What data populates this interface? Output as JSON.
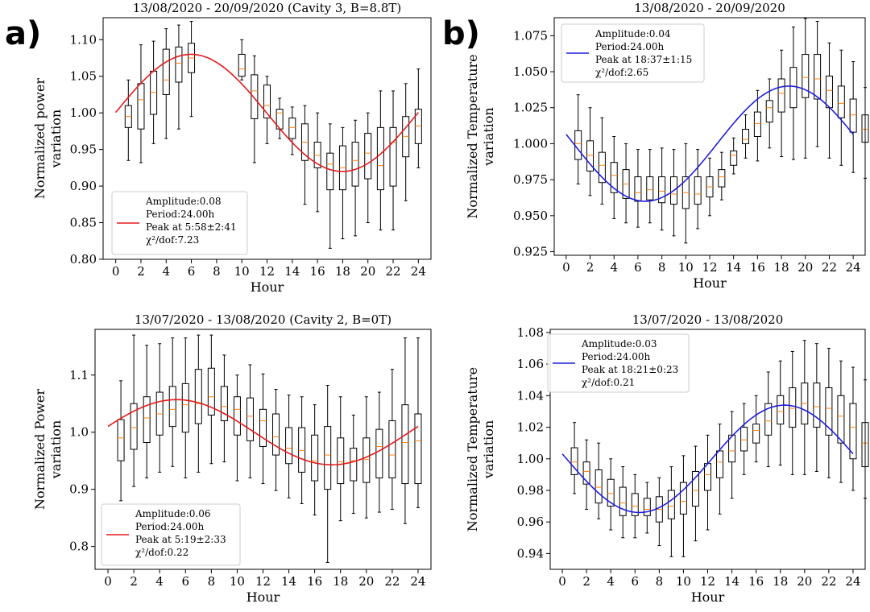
{
  "panel_labels": [
    "a)",
    "b)"
  ],
  "chart_data": [
    {
      "id": "p1",
      "type": "box",
      "title": "13/08/2020 - 20/09/2020 (Cavity 3, B=8.8T)",
      "xlabel": "Hour",
      "ylabel": [
        "Normalized power",
        "variation"
      ],
      "xlim": [
        -1,
        25
      ],
      "ylim": [
        0.8,
        1.13
      ],
      "xticks": [
        0,
        2,
        4,
        6,
        8,
        10,
        12,
        14,
        16,
        18,
        20,
        22,
        24
      ],
      "yticks": [
        0.8,
        0.85,
        0.9,
        0.95,
        1.0,
        1.05,
        1.1
      ],
      "ytick_labels": [
        "0.80",
        "0.85",
        "0.90",
        "0.95",
        "1.00",
        "1.05",
        "1.10"
      ],
      "fit": {
        "color": "#e41a1c",
        "start": 0,
        "end": 24,
        "mean": 1.0,
        "amplitude": 0.08,
        "period": 24,
        "peak_hour": 5.97
      },
      "legend": {
        "position": "lower-left",
        "lines": [
          "Amplitude:0.08",
          "Period:24.00h",
          "Peak at 5:58±2:41",
          "χ²/dof:7.23"
        ]
      },
      "boxes": [
        {
          "x": 1,
          "q1": 0.98,
          "median": 0.995,
          "q3": 1.01,
          "wlo": 0.935,
          "whi": 1.045
        },
        {
          "x": 2,
          "q1": 0.978,
          "median": 1.018,
          "q3": 1.04,
          "wlo": 0.932,
          "whi": 1.093
        },
        {
          "x": 3,
          "q1": 0.998,
          "median": 1.028,
          "q3": 1.057,
          "wlo": 0.958,
          "whi": 1.098
        },
        {
          "x": 4,
          "q1": 1.025,
          "median": 1.045,
          "q3": 1.087,
          "wlo": 0.965,
          "whi": 1.115
        },
        {
          "x": 5,
          "q1": 1.042,
          "median": 1.068,
          "q3": 1.09,
          "wlo": 0.978,
          "whi": 1.12
        },
        {
          "x": 6,
          "q1": 1.055,
          "median": 1.075,
          "q3": 1.095,
          "wlo": 0.995,
          "whi": 1.125
        },
        {
          "x": 10,
          "q1": 1.05,
          "median": 1.06,
          "q3": 1.08,
          "wlo": 1.045,
          "whi": 1.1
        },
        {
          "x": 11,
          "q1": 0.992,
          "median": 1.03,
          "q3": 1.052,
          "wlo": 0.932,
          "whi": 1.078
        },
        {
          "x": 12,
          "q1": 0.993,
          "median": 1.01,
          "q3": 1.038,
          "wlo": 0.958,
          "whi": 1.05
        },
        {
          "x": 13,
          "q1": 0.978,
          "median": 1.0,
          "q3": 1.005,
          "wlo": 0.965,
          "whi": 1.02
        },
        {
          "x": 14,
          "q1": 0.965,
          "median": 0.98,
          "q3": 0.993,
          "wlo": 0.943,
          "whi": 1.008
        },
        {
          "x": 15,
          "q1": 0.935,
          "median": 0.96,
          "q3": 0.985,
          "wlo": 0.875,
          "whi": 1.01
        },
        {
          "x": 16,
          "q1": 0.925,
          "median": 0.942,
          "q3": 0.96,
          "wlo": 0.865,
          "whi": 1.0
        },
        {
          "x": 17,
          "q1": 0.895,
          "median": 0.93,
          "q3": 0.945,
          "wlo": 0.815,
          "whi": 0.985
        },
        {
          "x": 18,
          "q1": 0.895,
          "median": 0.925,
          "q3": 0.955,
          "wlo": 0.828,
          "whi": 0.98
        },
        {
          "x": 19,
          "q1": 0.9,
          "median": 0.935,
          "q3": 0.96,
          "wlo": 0.832,
          "whi": 0.99
        },
        {
          "x": 20,
          "q1": 0.91,
          "median": 0.945,
          "q3": 0.972,
          "wlo": 0.85,
          "whi": 1.0
        },
        {
          "x": 21,
          "q1": 0.895,
          "median": 0.928,
          "q3": 0.98,
          "wlo": 0.84,
          "whi": 1.03
        },
        {
          "x": 22,
          "q1": 0.9,
          "median": 0.96,
          "q3": 0.98,
          "wlo": 0.84,
          "whi": 1.03
        },
        {
          "x": 23,
          "q1": 0.94,
          "median": 0.968,
          "q3": 0.995,
          "wlo": 0.88,
          "whi": 1.04
        },
        {
          "x": 24,
          "q1": 0.958,
          "median": 0.982,
          "q3": 1.005,
          "wlo": 0.925,
          "whi": 1.06
        }
      ]
    },
    {
      "id": "p2",
      "type": "box",
      "title": "13/08/2020 - 20/09/2020",
      "xlabel": "Hour",
      "ylabel": [
        "Normalized Temperature",
        "variation"
      ],
      "xlim": [
        -1,
        25
      ],
      "ylim": [
        0.9225,
        1.0875
      ],
      "xticks": [
        0,
        2,
        4,
        6,
        8,
        10,
        12,
        14,
        16,
        18,
        20,
        22,
        24
      ],
      "yticks": [
        0.925,
        0.95,
        0.975,
        1.0,
        1.025,
        1.05,
        1.075
      ],
      "ytick_labels": [
        "0.925",
        "0.950",
        "0.975",
        "1.000",
        "1.025",
        "1.050",
        "1.075"
      ],
      "fit": {
        "color": "#1f1fdd",
        "start": 0,
        "end": 24,
        "mean": 1.0,
        "amplitude": 0.04,
        "period": 24,
        "peak_hour": 18.62
      },
      "legend": {
        "position": "upper-left",
        "lines": [
          "Amplitude:0.04",
          "Period:24.00h",
          "Peak at 18:37±1:15",
          "χ²/dof:2.65"
        ]
      },
      "boxes": [
        {
          "x": 1,
          "q1": 0.989,
          "median": 1.0,
          "q3": 1.009,
          "wlo": 0.972,
          "whi": 1.034
        },
        {
          "x": 2,
          "q1": 0.981,
          "median": 0.992,
          "q3": 1.002,
          "wlo": 0.964,
          "whi": 1.025
        },
        {
          "x": 3,
          "q1": 0.973,
          "median": 0.985,
          "q3": 0.994,
          "wlo": 0.958,
          "whi": 1.018
        },
        {
          "x": 4,
          "q1": 0.966,
          "median": 0.978,
          "q3": 0.987,
          "wlo": 0.948,
          "whi": 1.005
        },
        {
          "x": 5,
          "q1": 0.962,
          "median": 0.972,
          "q3": 0.982,
          "wlo": 0.945,
          "whi": 1.0
        },
        {
          "x": 6,
          "q1": 0.96,
          "median": 0.966,
          "q3": 0.977,
          "wlo": 0.942,
          "whi": 0.996
        },
        {
          "x": 7,
          "q1": 0.961,
          "median": 0.968,
          "q3": 0.977,
          "wlo": 0.945,
          "whi": 0.996
        },
        {
          "x": 8,
          "q1": 0.959,
          "median": 0.967,
          "q3": 0.977,
          "wlo": 0.94,
          "whi": 0.997
        },
        {
          "x": 9,
          "q1": 0.958,
          "median": 0.965,
          "q3": 0.977,
          "wlo": 0.936,
          "whi": 0.996
        },
        {
          "x": 10,
          "q1": 0.955,
          "median": 0.966,
          "q3": 0.977,
          "wlo": 0.931,
          "whi": 1.0
        },
        {
          "x": 11,
          "q1": 0.958,
          "median": 0.965,
          "q3": 0.977,
          "wlo": 0.941,
          "whi": 0.996
        },
        {
          "x": 12,
          "q1": 0.963,
          "median": 0.97,
          "q3": 0.977,
          "wlo": 0.95,
          "whi": 0.99
        },
        {
          "x": 13,
          "q1": 0.97,
          "median": 0.977,
          "q3": 0.982,
          "wlo": 0.961,
          "whi": 0.994
        },
        {
          "x": 14,
          "q1": 0.985,
          "median": 0.992,
          "q3": 0.995,
          "wlo": 0.979,
          "whi": 1.004
        },
        {
          "x": 15,
          "q1": 1.0,
          "median": 1.003,
          "q3": 1.01,
          "wlo": 0.99,
          "whi": 1.02
        },
        {
          "x": 16,
          "q1": 1.005,
          "median": 1.014,
          "q3": 1.022,
          "wlo": 0.988,
          "whi": 1.037
        },
        {
          "x": 17,
          "q1": 1.015,
          "median": 1.025,
          "q3": 1.03,
          "wlo": 0.997,
          "whi": 1.045
        },
        {
          "x": 18,
          "q1": 1.022,
          "median": 1.035,
          "q3": 1.045,
          "wlo": 0.991,
          "whi": 1.065
        },
        {
          "x": 19,
          "q1": 1.025,
          "median": 1.04,
          "q3": 1.053,
          "wlo": 0.989,
          "whi": 1.081
        },
        {
          "x": 20,
          "q1": 1.032,
          "median": 1.046,
          "q3": 1.062,
          "wlo": 0.99,
          "whi": 1.087
        },
        {
          "x": 21,
          "q1": 1.031,
          "median": 1.045,
          "q3": 1.062,
          "wlo": 0.998,
          "whi": 1.085
        },
        {
          "x": 22,
          "q1": 1.025,
          "median": 1.037,
          "q3": 1.047,
          "wlo": 0.99,
          "whi": 1.07
        },
        {
          "x": 23,
          "q1": 1.018,
          "median": 1.028,
          "q3": 1.04,
          "wlo": 0.985,
          "whi": 1.065
        },
        {
          "x": 24,
          "q1": 1.008,
          "median": 1.02,
          "q3": 1.031,
          "wlo": 0.98,
          "whi": 1.057
        },
        {
          "x": 25,
          "q1": 1.001,
          "median": 1.01,
          "q3": 1.02,
          "wlo": 0.976,
          "whi": 1.039
        }
      ]
    },
    {
      "id": "p3",
      "type": "box",
      "title": "13/07/2020 - 13/08/2020 (Cavity 2, B=0T)",
      "xlabel": "Hour",
      "ylabel": [
        "Normalized Power",
        "variation"
      ],
      "xlim": [
        -1,
        25
      ],
      "ylim": [
        0.76,
        1.18
      ],
      "xticks": [
        0,
        2,
        4,
        6,
        8,
        10,
        12,
        14,
        16,
        18,
        20,
        22,
        24
      ],
      "yticks": [
        0.8,
        0.9,
        1.0,
        1.1
      ],
      "ytick_labels": [
        "0.8",
        "0.9",
        "1.0",
        "1.1"
      ],
      "fit": {
        "color": "#e41a1c",
        "start": 0,
        "end": 24,
        "mean": 1.0,
        "amplitude": 0.057,
        "period": 24,
        "peak_hour": 5.32
      },
      "legend": {
        "position": "lower-left",
        "lines": [
          "Amplitude:0.06",
          "Period:24.00h",
          "Peak at 5:19±2:33",
          "χ²/dof:0.22"
        ]
      },
      "boxes": [
        {
          "x": 1,
          "q1": 0.95,
          "median": 0.99,
          "q3": 1.022,
          "wlo": 0.88,
          "whi": 1.09
        },
        {
          "x": 2,
          "q1": 0.97,
          "median": 1.008,
          "q3": 1.05,
          "wlo": 0.905,
          "whi": 1.17
        },
        {
          "x": 3,
          "q1": 0.982,
          "median": 1.025,
          "q3": 1.062,
          "wlo": 0.92,
          "whi": 1.152
        },
        {
          "x": 4,
          "q1": 0.995,
          "median": 1.032,
          "q3": 1.07,
          "wlo": 0.93,
          "whi": 1.155
        },
        {
          "x": 5,
          "q1": 1.01,
          "median": 1.04,
          "q3": 1.08,
          "wlo": 0.94,
          "whi": 1.165
        },
        {
          "x": 6,
          "q1": 1.0,
          "median": 1.048,
          "q3": 1.085,
          "wlo": 0.92,
          "whi": 1.165
        },
        {
          "x": 7,
          "q1": 1.015,
          "median": 1.05,
          "q3": 1.11,
          "wlo": 0.93,
          "whi": 1.17
        },
        {
          "x": 8,
          "q1": 1.03,
          "median": 1.062,
          "q3": 1.112,
          "wlo": 0.945,
          "whi": 1.17
        },
        {
          "x": 9,
          "q1": 1.02,
          "median": 1.045,
          "q3": 1.08,
          "wlo": 0.948,
          "whi": 1.135
        },
        {
          "x": 10,
          "q1": 0.995,
          "median": 1.04,
          "q3": 1.062,
          "wlo": 0.915,
          "whi": 1.1
        },
        {
          "x": 11,
          "q1": 0.985,
          "median": 1.028,
          "q3": 1.06,
          "wlo": 0.92,
          "whi": 1.118
        },
        {
          "x": 12,
          "q1": 0.975,
          "median": 1.02,
          "q3": 1.04,
          "wlo": 0.91,
          "whi": 1.102
        },
        {
          "x": 13,
          "q1": 0.96,
          "median": 0.992,
          "q3": 1.032,
          "wlo": 0.898,
          "whi": 1.075
        },
        {
          "x": 14,
          "q1": 0.945,
          "median": 0.972,
          "q3": 1.008,
          "wlo": 0.885,
          "whi": 1.065
        },
        {
          "x": 15,
          "q1": 0.93,
          "median": 0.968,
          "q3": 1.008,
          "wlo": 0.875,
          "whi": 1.062
        },
        {
          "x": 16,
          "q1": 0.915,
          "median": 0.95,
          "q3": 0.995,
          "wlo": 0.855,
          "whi": 1.048
        },
        {
          "x": 17,
          "q1": 0.9,
          "median": 0.96,
          "q3": 1.01,
          "wlo": 0.772,
          "whi": 1.082
        },
        {
          "x": 18,
          "q1": 0.91,
          "median": 0.948,
          "q3": 0.99,
          "wlo": 0.845,
          "whi": 1.062
        },
        {
          "x": 19,
          "q1": 0.915,
          "median": 0.95,
          "q3": 0.972,
          "wlo": 0.858,
          "whi": 1.03
        },
        {
          "x": 20,
          "q1": 0.912,
          "median": 0.952,
          "q3": 0.99,
          "wlo": 0.85,
          "whi": 1.062
        },
        {
          "x": 21,
          "q1": 0.92,
          "median": 0.975,
          "q3": 1.005,
          "wlo": 0.86,
          "whi": 1.07
        },
        {
          "x": 22,
          "q1": 0.92,
          "median": 0.96,
          "q3": 1.02,
          "wlo": 0.865,
          "whi": 1.11
        },
        {
          "x": 23,
          "q1": 0.91,
          "median": 0.982,
          "q3": 1.048,
          "wlo": 0.84,
          "whi": 1.165
        },
        {
          "x": 24,
          "q1": 0.91,
          "median": 0.985,
          "q3": 1.032,
          "wlo": 0.868,
          "whi": 1.165
        }
      ]
    },
    {
      "id": "p4",
      "type": "box",
      "title": "13/07/2020 - 13/08/2020",
      "xlabel": "Hour",
      "ylabel": [
        "Normalized Temperature",
        "variation"
      ],
      "xlim": [
        -1,
        25
      ],
      "ylim": [
        0.93,
        1.082
      ],
      "xticks": [
        0,
        2,
        4,
        6,
        8,
        10,
        12,
        14,
        16,
        18,
        20,
        22,
        24
      ],
      "yticks": [
        0.94,
        0.96,
        0.98,
        1.0,
        1.02,
        1.04,
        1.06,
        1.08
      ],
      "ytick_labels": [
        "0.94",
        "0.96",
        "0.98",
        "1.00",
        "1.02",
        "1.04",
        "1.06",
        "1.08"
      ],
      "fit": {
        "color": "#1f1fdd",
        "start": 0,
        "end": 24,
        "mean": 1.0,
        "amplitude": 0.034,
        "period": 24,
        "peak_hour": 18.35
      },
      "legend": {
        "position": "upper-left",
        "lines": [
          "Amplitude:0.03",
          "Period:24.00h",
          "Peak at 18:21±0:23",
          "χ²/dof:0.21"
        ]
      },
      "boxes": [
        {
          "x": 1,
          "q1": 0.99,
          "median": 0.998,
          "q3": 1.007,
          "wlo": 0.978,
          "whi": 1.023
        },
        {
          "x": 2,
          "q1": 0.984,
          "median": 0.992,
          "q3": 0.998,
          "wlo": 0.968,
          "whi": 1.012
        },
        {
          "x": 3,
          "q1": 0.972,
          "median": 0.982,
          "q3": 0.993,
          "wlo": 0.962,
          "whi": 1.01
        },
        {
          "x": 4,
          "q1": 0.97,
          "median": 0.978,
          "q3": 0.987,
          "wlo": 0.955,
          "whi": 1.0
        },
        {
          "x": 5,
          "q1": 0.964,
          "median": 0.972,
          "q3": 0.982,
          "wlo": 0.95,
          "whi": 0.995
        },
        {
          "x": 6,
          "q1": 0.964,
          "median": 0.97,
          "q3": 0.978,
          "wlo": 0.95,
          "whi": 0.99
        },
        {
          "x": 7,
          "q1": 0.964,
          "median": 0.968,
          "q3": 0.975,
          "wlo": 0.953,
          "whi": 0.985
        },
        {
          "x": 8,
          "q1": 0.96,
          "median": 0.968,
          "q3": 0.976,
          "wlo": 0.945,
          "whi": 0.988
        },
        {
          "x": 9,
          "q1": 0.962,
          "median": 0.97,
          "q3": 0.98,
          "wlo": 0.938,
          "whi": 0.995
        },
        {
          "x": 10,
          "q1": 0.965,
          "median": 0.973,
          "q3": 0.985,
          "wlo": 0.938,
          "whi": 1.002
        },
        {
          "x": 11,
          "q1": 0.97,
          "median": 0.98,
          "q3": 0.992,
          "wlo": 0.948,
          "whi": 1.008
        },
        {
          "x": 12,
          "q1": 0.98,
          "median": 0.99,
          "q3": 0.997,
          "wlo": 0.955,
          "whi": 1.015
        },
        {
          "x": 13,
          "q1": 0.988,
          "median": 0.998,
          "q3": 1.005,
          "wlo": 0.965,
          "whi": 1.022
        },
        {
          "x": 14,
          "q1": 0.998,
          "median": 1.005,
          "q3": 1.015,
          "wlo": 0.975,
          "whi": 1.03
        },
        {
          "x": 15,
          "q1": 1.005,
          "median": 1.012,
          "q3": 1.02,
          "wlo": 0.99,
          "whi": 1.035
        },
        {
          "x": 16,
          "q1": 1.01,
          "median": 1.018,
          "q3": 1.022,
          "wlo": 0.998,
          "whi": 1.04
        },
        {
          "x": 17,
          "q1": 1.015,
          "median": 1.024,
          "q3": 1.035,
          "wlo": 0.995,
          "whi": 1.055
        },
        {
          "x": 18,
          "q1": 1.022,
          "median": 1.03,
          "q3": 1.04,
          "wlo": 0.996,
          "whi": 1.062
        },
        {
          "x": 19,
          "q1": 1.02,
          "median": 1.032,
          "q3": 1.045,
          "wlo": 0.99,
          "whi": 1.068
        },
        {
          "x": 20,
          "q1": 1.022,
          "median": 1.035,
          "q3": 1.048,
          "wlo": 0.99,
          "whi": 1.075
        },
        {
          "x": 21,
          "q1": 1.02,
          "median": 1.033,
          "q3": 1.048,
          "wlo": 0.992,
          "whi": 1.073
        },
        {
          "x": 22,
          "q1": 1.015,
          "median": 1.032,
          "q3": 1.045,
          "wlo": 0.988,
          "whi": 1.07
        },
        {
          "x": 23,
          "q1": 1.01,
          "median": 1.027,
          "q3": 1.04,
          "wlo": 0.985,
          "whi": 1.062
        },
        {
          "x": 24,
          "q1": 1.0,
          "median": 1.02,
          "q3": 1.035,
          "wlo": 0.98,
          "whi": 1.058
        },
        {
          "x": 25,
          "q1": 0.995,
          "median": 1.01,
          "q3": 1.023,
          "wlo": 0.975,
          "whi": 1.05
        }
      ]
    }
  ]
}
